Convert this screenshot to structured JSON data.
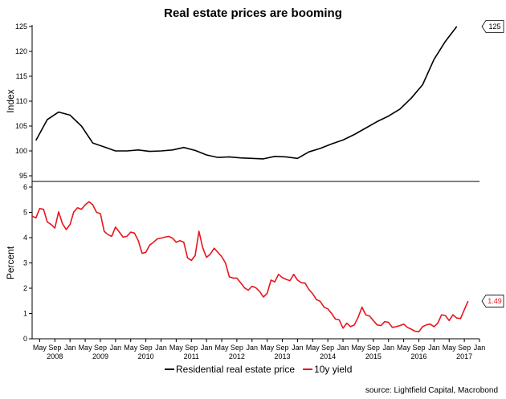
{
  "chart_data": {
    "type": "line",
    "title": "Real estate prices are booming",
    "source": "source: Lightfield Capital, Macrobond",
    "x_range": [
      "2008-03",
      "2018-01"
    ],
    "x_ticks": {
      "months": [
        "May",
        "Sep",
        "Jan",
        "May",
        "Sep",
        "Jan",
        "May",
        "Sep",
        "Jan",
        "May",
        "Sep",
        "Jan",
        "May",
        "Sep",
        "Jan",
        "May",
        "Sep",
        "Jan",
        "May",
        "Sep",
        "Jan",
        "May",
        "Sep",
        "Jan",
        "May",
        "Sep",
        "Jan",
        "May",
        "Sep",
        "Jan"
      ],
      "years": [
        "2008",
        "2009",
        "2010",
        "2011",
        "2012",
        "2013",
        "2014",
        "2015",
        "2016",
        "2017"
      ]
    },
    "colors": {
      "price": "#000000",
      "yield": "#e8151b"
    },
    "legend_position": "bottom",
    "panels": [
      {
        "ylabel": "Index",
        "ylim": [
          95,
          125
        ],
        "yticks": [
          "95",
          "100",
          "105",
          "110",
          "115",
          "120",
          "125"
        ],
        "series": [
          {
            "name": "Residential real estate price",
            "color_key": "price",
            "end_label": "125",
            "points": [
              [
                "2008-04",
                102.1
              ],
              [
                "2008-07",
                106.3
              ],
              [
                "2008-10",
                107.8
              ],
              [
                "2009-01",
                107.2
              ],
              [
                "2009-04",
                105.0
              ],
              [
                "2009-07",
                101.6
              ],
              [
                "2009-10",
                100.8
              ],
              [
                "2010-01",
                100.0
              ],
              [
                "2010-04",
                100.0
              ],
              [
                "2010-07",
                100.2
              ],
              [
                "2010-10",
                99.9
              ],
              [
                "2011-01",
                100.0
              ],
              [
                "2011-04",
                100.2
              ],
              [
                "2011-07",
                100.7
              ],
              [
                "2011-10",
                100.1
              ],
              [
                "2012-01",
                99.2
              ],
              [
                "2012-04",
                98.7
              ],
              [
                "2012-07",
                98.8
              ],
              [
                "2012-10",
                98.6
              ],
              [
                "2013-01",
                98.5
              ],
              [
                "2013-04",
                98.4
              ],
              [
                "2013-07",
                98.9
              ],
              [
                "2013-10",
                98.8
              ],
              [
                "2014-01",
                98.5
              ],
              [
                "2014-04",
                99.8
              ],
              [
                "2014-07",
                100.5
              ],
              [
                "2014-10",
                101.4
              ],
              [
                "2015-01",
                102.2
              ],
              [
                "2015-04",
                103.3
              ],
              [
                "2015-07",
                104.6
              ],
              [
                "2015-10",
                105.9
              ],
              [
                "2016-01",
                107.0
              ],
              [
                "2016-04",
                108.4
              ],
              [
                "2016-07",
                110.6
              ],
              [
                "2016-10",
                113.3
              ],
              [
                "2017-01",
                118.4
              ],
              [
                "2017-04",
                122.0
              ],
              [
                "2017-07",
                125.0
              ]
            ]
          }
        ]
      },
      {
        "ylabel": "Percent",
        "ylim": [
          0,
          6
        ],
        "yticks": [
          "0",
          "1",
          "2",
          "3",
          "4",
          "5",
          "6"
        ],
        "series": [
          {
            "name": "10y yield",
            "color_key": "yield",
            "end_label": "1.49",
            "points": [
              [
                "2008-03",
                4.85
              ],
              [
                "2008-04",
                4.78
              ],
              [
                "2008-05",
                5.15
              ],
              [
                "2008-06",
                5.12
              ],
              [
                "2008-07",
                4.62
              ],
              [
                "2008-08",
                4.52
              ],
              [
                "2008-09",
                4.38
              ],
              [
                "2008-10",
                5.02
              ],
              [
                "2008-11",
                4.55
              ],
              [
                "2008-12",
                4.32
              ],
              [
                "2009-01",
                4.52
              ],
              [
                "2009-02",
                5.02
              ],
              [
                "2009-03",
                5.18
              ],
              [
                "2009-04",
                5.12
              ],
              [
                "2009-05",
                5.3
              ],
              [
                "2009-06",
                5.42
              ],
              [
                "2009-07",
                5.3
              ],
              [
                "2009-08",
                5.0
              ],
              [
                "2009-09",
                4.95
              ],
              [
                "2009-10",
                4.25
              ],
              [
                "2009-11",
                4.12
              ],
              [
                "2009-12",
                4.05
              ],
              [
                "2010-01",
                4.42
              ],
              [
                "2010-02",
                4.22
              ],
              [
                "2010-03",
                4.02
              ],
              [
                "2010-04",
                4.05
              ],
              [
                "2010-05",
                4.22
              ],
              [
                "2010-06",
                4.18
              ],
              [
                "2010-07",
                3.88
              ],
              [
                "2010-08",
                3.38
              ],
              [
                "2010-09",
                3.42
              ],
              [
                "2010-10",
                3.7
              ],
              [
                "2010-11",
                3.82
              ],
              [
                "2010-12",
                3.95
              ],
              [
                "2011-01",
                3.98
              ],
              [
                "2011-02",
                4.02
              ],
              [
                "2011-03",
                4.05
              ],
              [
                "2011-04",
                3.98
              ],
              [
                "2011-05",
                3.82
              ],
              [
                "2011-06",
                3.88
              ],
              [
                "2011-07",
                3.82
              ],
              [
                "2011-08",
                3.2
              ],
              [
                "2011-09",
                3.1
              ],
              [
                "2011-10",
                3.3
              ],
              [
                "2011-11",
                4.25
              ],
              [
                "2011-12",
                3.6
              ],
              [
                "2012-01",
                3.22
              ],
              [
                "2012-02",
                3.35
              ],
              [
                "2012-03",
                3.58
              ],
              [
                "2012-04",
                3.42
              ],
              [
                "2012-05",
                3.25
              ],
              [
                "2012-06",
                3.0
              ],
              [
                "2012-07",
                2.45
              ],
              [
                "2012-08",
                2.4
              ],
              [
                "2012-09",
                2.4
              ],
              [
                "2012-10",
                2.22
              ],
              [
                "2012-11",
                2.02
              ],
              [
                "2012-12",
                1.92
              ],
              [
                "2013-01",
                2.08
              ],
              [
                "2013-02",
                2.02
              ],
              [
                "2013-03",
                1.88
              ],
              [
                "2013-04",
                1.65
              ],
              [
                "2013-05",
                1.8
              ],
              [
                "2013-06",
                2.32
              ],
              [
                "2013-07",
                2.25
              ],
              [
                "2013-08",
                2.55
              ],
              [
                "2013-09",
                2.42
              ],
              [
                "2013-10",
                2.35
              ],
              [
                "2013-11",
                2.3
              ],
              [
                "2013-12",
                2.55
              ],
              [
                "2014-01",
                2.32
              ],
              [
                "2014-02",
                2.22
              ],
              [
                "2014-03",
                2.2
              ],
              [
                "2014-04",
                1.95
              ],
              [
                "2014-05",
                1.78
              ],
              [
                "2014-06",
                1.55
              ],
              [
                "2014-07",
                1.48
              ],
              [
                "2014-08",
                1.25
              ],
              [
                "2014-09",
                1.18
              ],
              [
                "2014-10",
                1.0
              ],
              [
                "2014-11",
                0.78
              ],
              [
                "2014-12",
                0.75
              ],
              [
                "2015-01",
                0.42
              ],
              [
                "2015-02",
                0.62
              ],
              [
                "2015-03",
                0.48
              ],
              [
                "2015-04",
                0.55
              ],
              [
                "2015-05",
                0.85
              ],
              [
                "2015-06",
                1.25
              ],
              [
                "2015-07",
                0.95
              ],
              [
                "2015-08",
                0.9
              ],
              [
                "2015-09",
                0.72
              ],
              [
                "2015-10",
                0.55
              ],
              [
                "2015-11",
                0.52
              ],
              [
                "2015-12",
                0.68
              ],
              [
                "2016-01",
                0.65
              ],
              [
                "2016-02",
                0.45
              ],
              [
                "2016-03",
                0.48
              ],
              [
                "2016-04",
                0.52
              ],
              [
                "2016-05",
                0.58
              ],
              [
                "2016-06",
                0.45
              ],
              [
                "2016-07",
                0.38
              ],
              [
                "2016-08",
                0.3
              ],
              [
                "2016-09",
                0.28
              ],
              [
                "2016-10",
                0.48
              ],
              [
                "2016-11",
                0.55
              ],
              [
                "2016-12",
                0.58
              ],
              [
                "2017-01",
                0.48
              ],
              [
                "2017-02",
                0.62
              ],
              [
                "2017-03",
                0.95
              ],
              [
                "2017-04",
                0.92
              ],
              [
                "2017-05",
                0.72
              ],
              [
                "2017-06",
                0.95
              ],
              [
                "2017-07",
                0.82
              ],
              [
                "2017-08",
                0.8
              ],
              [
                "2017-09",
                1.15
              ],
              [
                "2017-10",
                1.49
              ]
            ]
          }
        ]
      }
    ]
  }
}
